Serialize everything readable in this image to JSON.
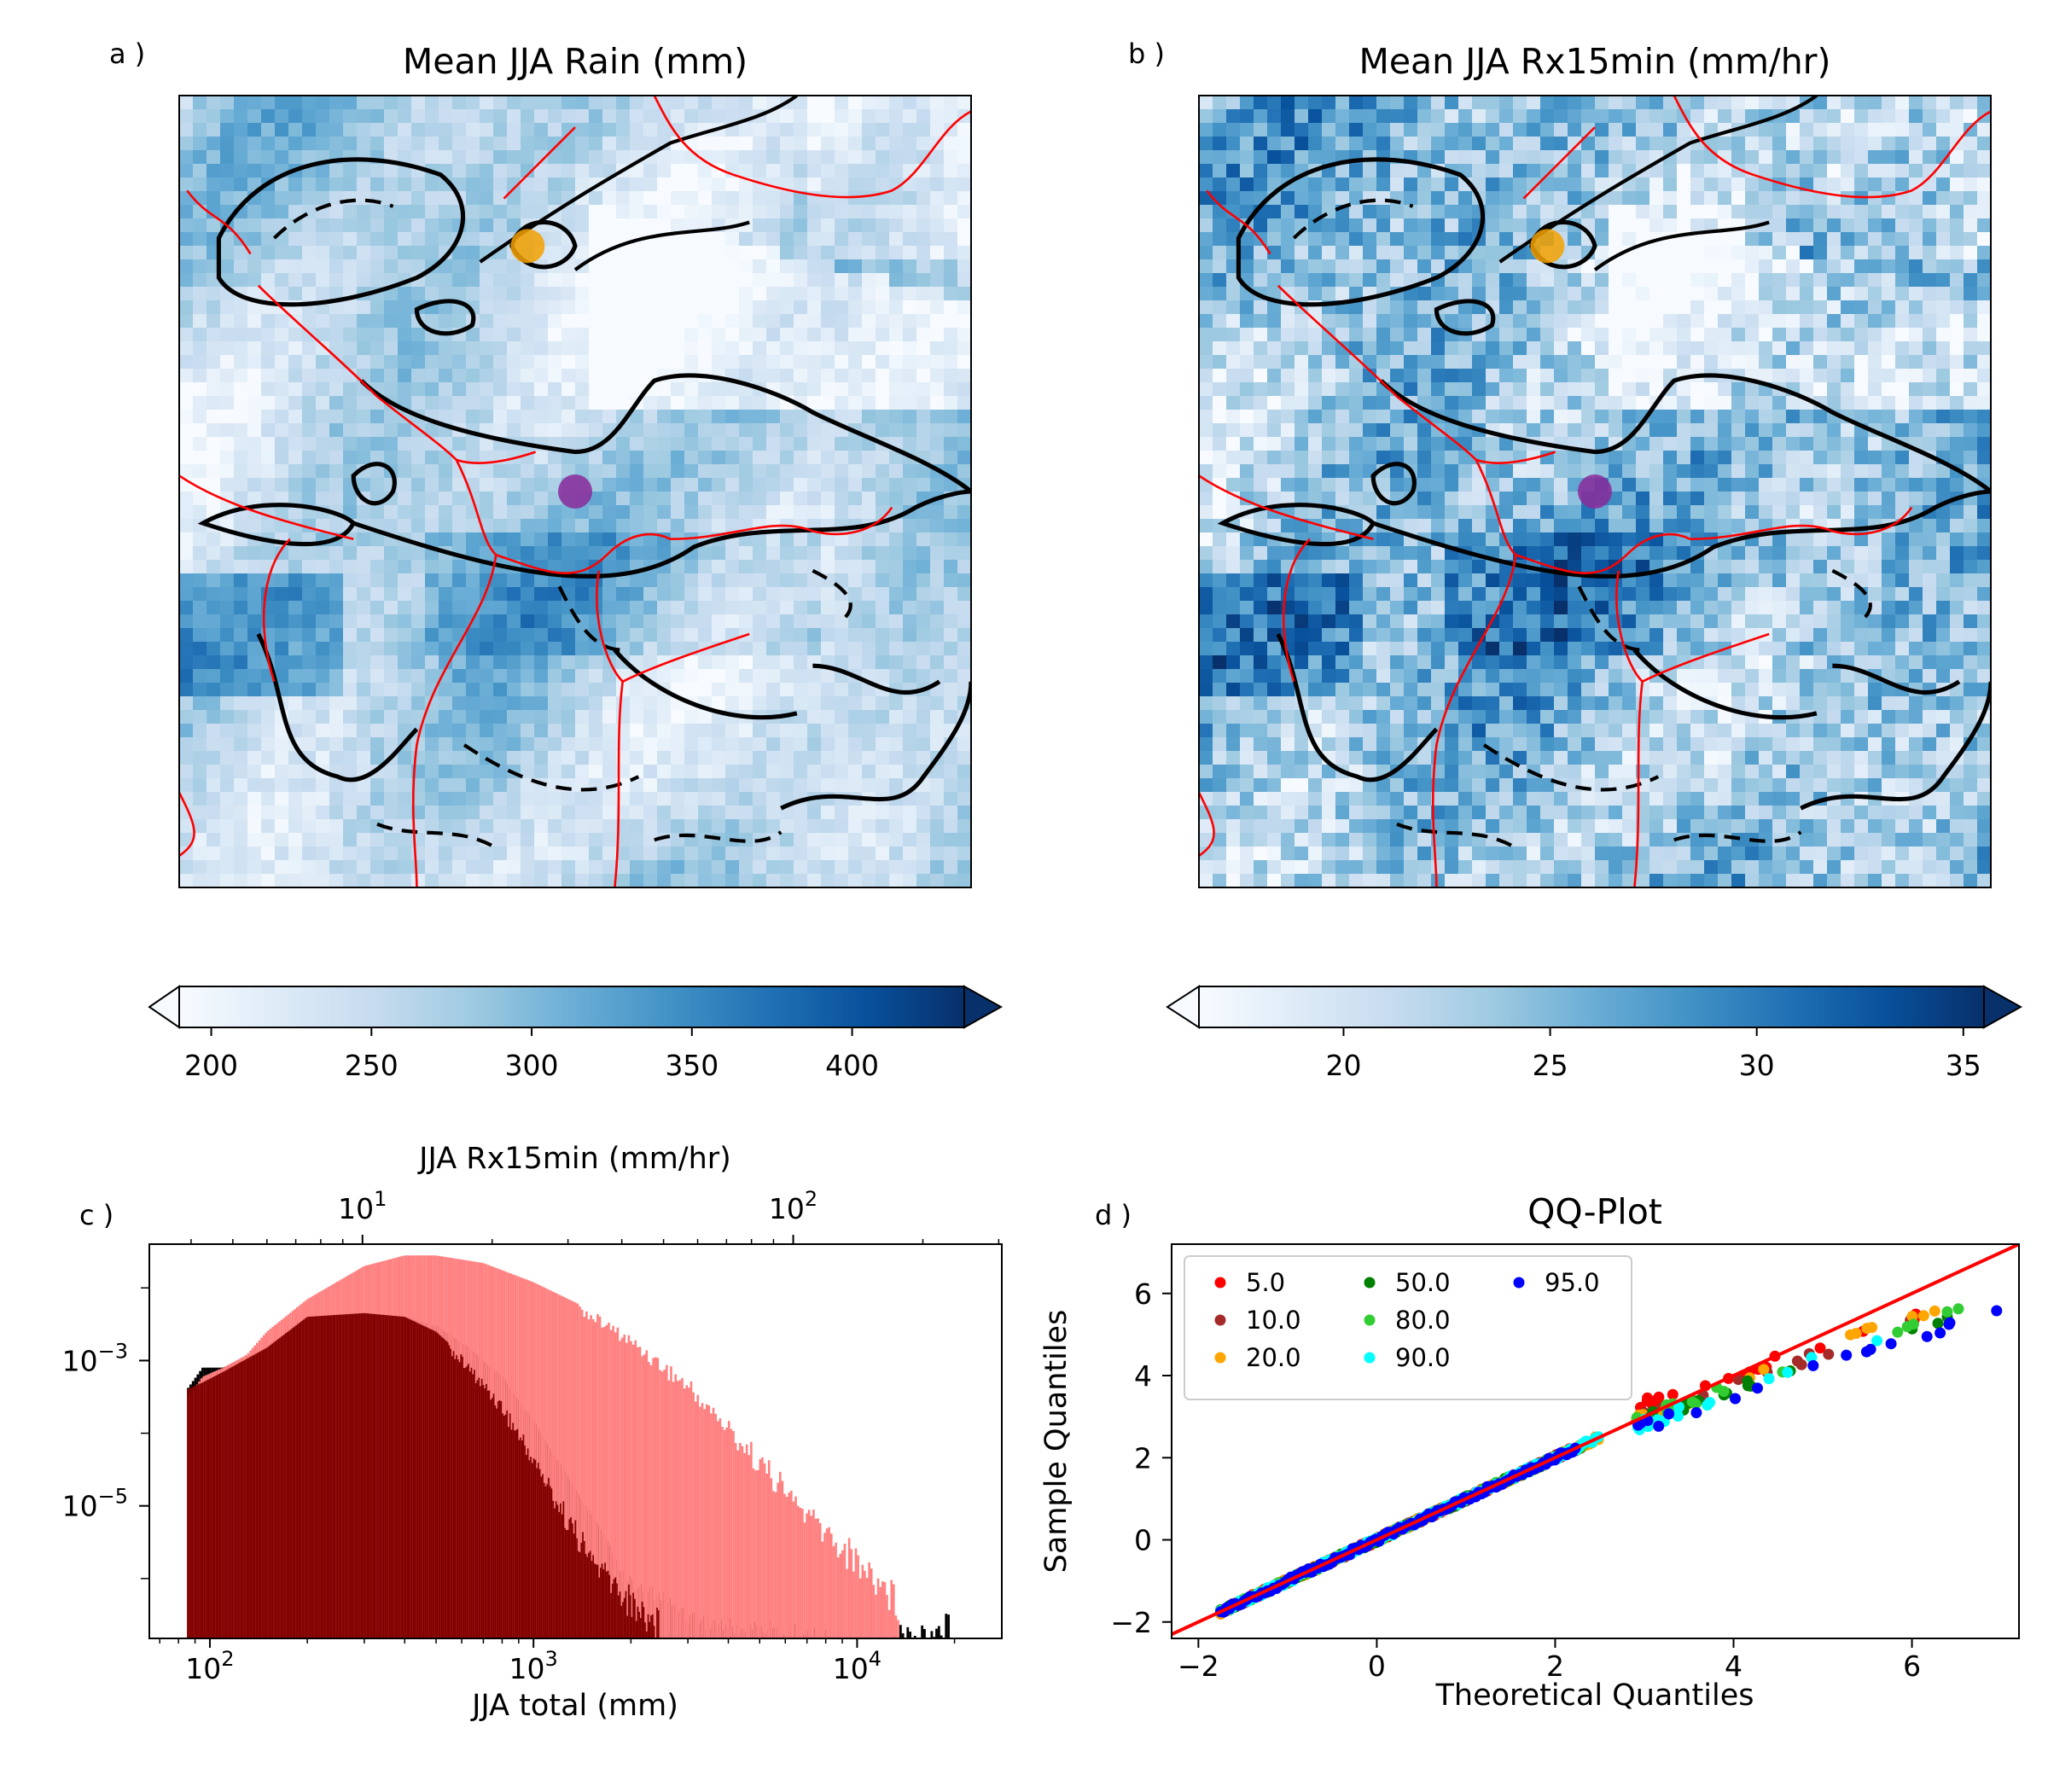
{
  "chart_data": [
    {
      "panel": "a )",
      "type": "heatmap",
      "title": "Mean JJA Rain (mm)",
      "colormap": "Blues",
      "colorbar": {
        "ticks": [
          200,
          250,
          300,
          350,
          400
        ],
        "range": [
          190,
          435
        ],
        "extend": "both"
      },
      "markers": [
        {
          "color": "#f5a100",
          "pos": [
            0.44,
            0.19
          ]
        },
        {
          "color": "#8b2a9a",
          "pos": [
            0.5,
            0.5
          ]
        }
      ],
      "contour_color": "#000000",
      "boundary_color": "#ff0000"
    },
    {
      "panel": "b )",
      "type": "heatmap",
      "title": "Mean JJA Rx15min (mm/hr)",
      "colormap": "Blues",
      "colorbar": {
        "ticks": [
          20,
          25,
          30,
          35
        ],
        "range": [
          16.5,
          35.5
        ],
        "extend": "both"
      },
      "markers": [
        {
          "color": "#f5a100",
          "pos": [
            0.44,
            0.19
          ]
        },
        {
          "color": "#8b2a9a",
          "pos": [
            0.5,
            0.5
          ]
        }
      ],
      "contour_color": "#000000",
      "boundary_color": "#ff0000"
    },
    {
      "panel": "c )",
      "type": "bar",
      "subtype": "histogram",
      "xlabel": "JJA total (mm)",
      "x2label": "JJA Rx15min (mm/hr)",
      "xscale": "log",
      "yscale": "log",
      "xlim": [
        65,
        28000
      ],
      "x2lim": [
        3.2,
        305
      ],
      "ylim": [
        1.5e-07,
        0.04
      ],
      "xticks": [
        {
          "value": 100,
          "mant": "10",
          "exp": "2"
        },
        {
          "value": 1000,
          "mant": "10",
          "exp": "3"
        },
        {
          "value": 10000,
          "mant": "10",
          "exp": "4"
        }
      ],
      "x2ticks": [
        {
          "value": 10,
          "mant": "10",
          "exp": "1"
        },
        {
          "value": 100,
          "mant": "10",
          "exp": "2"
        }
      ],
      "yticks": [
        {
          "value": 0.001,
          "mant": "10",
          "exp": "−3"
        },
        {
          "value": 1e-05,
          "mant": "10",
          "exp": "−5"
        }
      ],
      "series": [
        {
          "color": "#000000",
          "alpha": 1.0,
          "x": [
            85,
            95,
            110,
            150,
            200,
            300,
            400,
            500,
            600,
            800,
            1000,
            1200,
            1500,
            2000,
            2500,
            3000,
            4000,
            5000,
            8000,
            12000,
            20000
          ],
          "y": [
            0.0004,
            0.0008,
            0.0008,
            0.0015,
            0.004,
            0.0045,
            0.004,
            0.003,
            0.0018,
            0.0006,
            0.00015,
            4e-05,
            8e-06,
            1e-06,
            7e-07,
            4e-07,
            3e-07,
            3e-07,
            2e-07,
            2e-07,
            4e-07
          ]
        },
        {
          "color": "#ff8080",
          "alpha": 1.0,
          "x": [
            85,
            95,
            110,
            130,
            150,
            200,
            300,
            400,
            500,
            700,
            1000,
            1500,
            2000,
            3000,
            5000,
            7000,
            10000,
            12000,
            13500
          ],
          "y": [
            0.0003,
            0.0006,
            0.0008,
            0.0012,
            0.0025,
            0.007,
            0.02,
            0.028,
            0.028,
            0.022,
            0.012,
            0.005,
            0.0023,
            0.0006,
            6e-05,
            1.2e-05,
            3e-06,
            1.5e-06,
            8e-07
          ]
        },
        {
          "color": "#800000",
          "alpha": 1.0,
          "x": [
            85,
            95,
            110,
            150,
            200,
            300,
            400,
            500,
            600,
            800,
            1000,
            1200,
            1500,
            2000,
            2500
          ],
          "y": [
            0.0004,
            0.0005,
            0.0007,
            0.0015,
            0.004,
            0.0045,
            0.004,
            0.0025,
            0.0012,
            0.0003,
            6e-05,
            1.5e-05,
            3e-06,
            8e-07,
            4e-07
          ]
        }
      ]
    },
    {
      "panel": "d )",
      "type": "scatter",
      "title": "QQ-Plot",
      "xlabel": "Theoretical Quantiles",
      "ylabel": "Sample Quantiles",
      "xlim": [
        -2.3,
        7.2
      ],
      "ylim": [
        -2.4,
        7.2
      ],
      "xticks": [
        -2,
        0,
        2,
        4,
        6
      ],
      "yticks": [
        -2,
        0,
        2,
        4,
        6
      ],
      "reference_line": {
        "color": "#ff0000",
        "x": [
          -2.3,
          7.2
        ],
        "y": [
          -2.3,
          7.2
        ]
      },
      "legend_position": "upper left",
      "series": [
        {
          "name": "5.0",
          "color": "#ff0000"
        },
        {
          "name": "10.0",
          "color": "#a52a2a"
        },
        {
          "name": "20.0",
          "color": "#ffa500"
        },
        {
          "name": "50.0",
          "color": "#008000"
        },
        {
          "name": "80.0",
          "color": "#32cd32"
        },
        {
          "name": "90.0",
          "color": "#00ffff"
        },
        {
          "name": "95.0",
          "color": "#0000ff"
        }
      ]
    }
  ]
}
